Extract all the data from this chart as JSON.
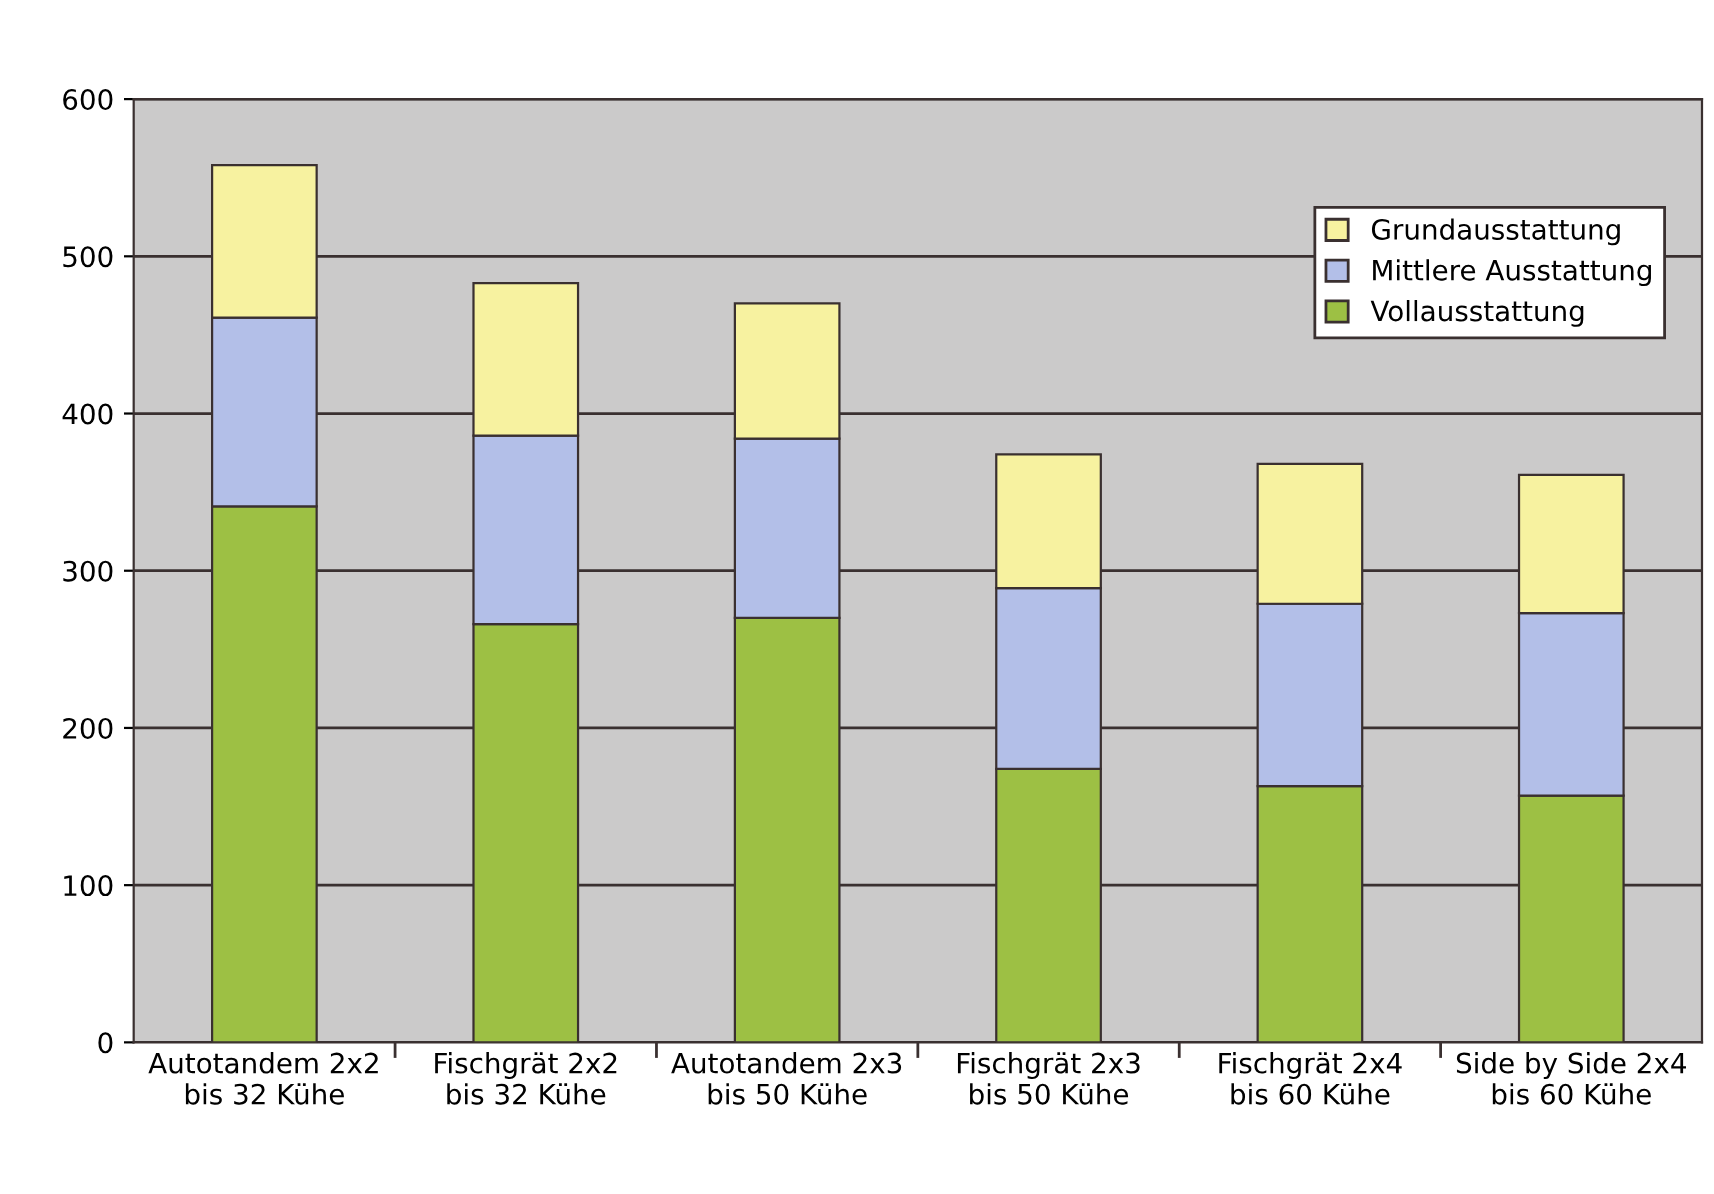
{
  "chart_data": {
    "type": "bar",
    "stacked": true,
    "categories": [
      "Autotandem 2x2\nbis 32 Kühe",
      "Fischgrät 2x2\nbis 32 Kühe",
      "Autotandem 2x3\nbis 50 Kühe",
      "Fischgrät 2x3\nbis 50 Kühe",
      "Fischgrät 2x4\nbis 60 Kühe",
      "Side by Side 2x4\nbis 60 Kühe"
    ],
    "series": [
      {
        "name": "Vollausstattung",
        "color": "#9dc044",
        "values": [
          341,
          266,
          270,
          174,
          163,
          157
        ]
      },
      {
        "name": "Mittlere Ausstattung",
        "color": "#b3bfe8",
        "values": [
          120,
          120,
          114,
          115,
          116,
          116
        ]
      },
      {
        "name": "Grundausstattung",
        "color": "#f7f2a0",
        "values": [
          97,
          97,
          86,
          85,
          89,
          88
        ]
      }
    ],
    "ylim": [
      0,
      600
    ],
    "yticks": [
      0,
      100,
      200,
      300,
      400,
      500,
      600
    ],
    "grid": "y",
    "legend": "top right"
  }
}
